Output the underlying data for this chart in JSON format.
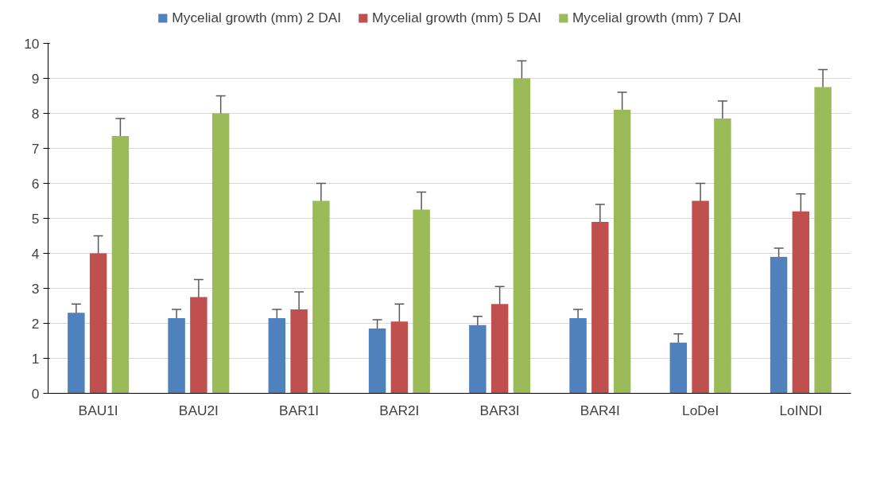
{
  "chart_data": {
    "type": "bar",
    "categories": [
      "BAU1I",
      "BAU2I",
      "BAR1I",
      "BAR2I",
      "BAR3I",
      "BAR4I",
      "LoDeI",
      "LoINDI"
    ],
    "series": [
      {
        "name": "Mycelial growth (mm) 2 DAI",
        "color": "#4f81bd",
        "values": [
          2.3,
          2.15,
          2.15,
          1.85,
          1.95,
          2.15,
          1.45,
          3.9
        ],
        "errors": [
          0.25,
          0.25,
          0.25,
          0.25,
          0.25,
          0.25,
          0.25,
          0.25
        ]
      },
      {
        "name": "Mycelial growth (mm) 5 DAI",
        "color": "#c0504d",
        "values": [
          4.0,
          2.75,
          2.4,
          2.05,
          2.55,
          4.9,
          5.5,
          5.2
        ],
        "errors": [
          0.5,
          0.5,
          0.5,
          0.5,
          0.5,
          0.5,
          0.5,
          0.5
        ]
      },
      {
        "name": "Mycelial growth (mm) 7 DAI",
        "color": "#9bbb59",
        "values": [
          7.35,
          8.0,
          5.5,
          5.25,
          9.0,
          8.1,
          7.85,
          8.75
        ],
        "errors": [
          0.5,
          0.5,
          0.5,
          0.5,
          0.5,
          0.5,
          0.5,
          0.5
        ]
      }
    ],
    "ylim": [
      0,
      10
    ],
    "yticks": [
      0,
      1,
      2,
      3,
      4,
      5,
      6,
      7,
      8,
      9,
      10
    ],
    "grid": "y",
    "legend": "top"
  }
}
